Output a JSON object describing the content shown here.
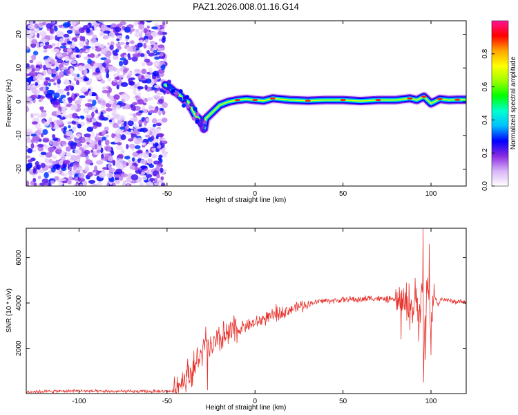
{
  "chart_data": [
    {
      "type": "heatmap",
      "title": "PAZ1.2026.008.01.16.G14",
      "xlabel": "Height of straight line (km)",
      "ylabel": "Frequency (Hz)",
      "xlim": [
        -130,
        120
      ],
      "ylim": [
        -25,
        24
      ],
      "xticks": [
        -100,
        -50,
        0,
        50,
        100
      ],
      "yticks": [
        -20,
        -10,
        0,
        10,
        20
      ],
      "noise_region": {
        "x_from": -130,
        "x_to": -51,
        "freq_from": -25,
        "freq_to": 24
      },
      "signal_track": {
        "heights": [
          -51,
          -48,
          -46,
          -44,
          -42,
          -40,
          -38,
          -36,
          -34,
          -32,
          -30,
          -29,
          -28,
          -26,
          -24,
          -22,
          -20,
          -15,
          -10,
          -5,
          0,
          5,
          10,
          20,
          30,
          40,
          50,
          60,
          70,
          80,
          88,
          92,
          96,
          100,
          105,
          110,
          115,
          120
        ],
        "frequencies": [
          5,
          4,
          3,
          2.5,
          1.5,
          0.5,
          0,
          -2,
          -4,
          -5,
          -6,
          -8,
          -5,
          -4,
          -3,
          -2,
          -1,
          0,
          0.5,
          0.8,
          0.5,
          0.3,
          1.0,
          0.5,
          0.3,
          0.5,
          0.5,
          0.2,
          0.5,
          0.5,
          1.0,
          0.5,
          1.5,
          -0.5,
          0.8,
          0.5,
          0.6,
          0.6
        ]
      },
      "colorbar": {
        "label": "Normalized spectral amplitude",
        "range": [
          0,
          1
        ],
        "ticks": [
          "0.0",
          "0.2",
          "0.4",
          "0.6",
          "0.8"
        ],
        "tick_values": [
          0,
          0.2,
          0.4,
          0.6,
          0.8
        ],
        "colors": [
          "#ffffff",
          "#d8b4f8",
          "#8a2be2",
          "#0000ff",
          "#00bfff",
          "#00ffd0",
          "#00ff00",
          "#a0ff00",
          "#ffff00",
          "#ffa500",
          "#ff0000",
          "#ff1493"
        ]
      }
    },
    {
      "type": "line",
      "xlabel": "Height of straight line (km)",
      "ylabel": "SNR (10 * v/v)",
      "xlim": [
        -130,
        120
      ],
      "ylim": [
        0,
        7300
      ],
      "xticks": [
        -100,
        -50,
        0,
        50,
        100
      ],
      "yticks": [
        2000,
        4000,
        6000
      ],
      "line_color": "#e8302a",
      "series": [
        {
          "name": "SNR",
          "x": [
            -130,
            -100,
            -90,
            -60,
            -46,
            -44,
            -42,
            -40,
            -38,
            -36,
            -34,
            -32,
            -30,
            -28,
            -26,
            -24,
            -22,
            -20,
            -15,
            -10,
            -5,
            0,
            5,
            10,
            15,
            20,
            25,
            30,
            35,
            40,
            45,
            50,
            55,
            60,
            65,
            70,
            75,
            80,
            82,
            84,
            86,
            88,
            90,
            92,
            94,
            95,
            96,
            97,
            98,
            100,
            102,
            104,
            106,
            110,
            115,
            120
          ],
          "y": [
            80,
            120,
            100,
            90,
            110,
            300,
            500,
            700,
            900,
            1000,
            1200,
            1500,
            1800,
            1900,
            2000,
            2100,
            2200,
            2300,
            2600,
            2800,
            3000,
            3100,
            3300,
            3400,
            3600,
            3700,
            3850,
            3950,
            4050,
            4100,
            4100,
            4150,
            4150,
            4150,
            4200,
            4200,
            4150,
            4150,
            3900,
            4100,
            3800,
            4200,
            3600,
            4300,
            3500,
            5200,
            1500,
            3800,
            4600,
            3400,
            4300,
            3900,
            4200,
            4100,
            4050,
            4050
          ]
        }
      ],
      "spikes": [
        {
          "x": -28,
          "y": 2950
        },
        {
          "x": -27,
          "y": 150
        },
        {
          "x": -18,
          "y": 3200
        },
        {
          "x": -12,
          "y": 3450
        },
        {
          "x": 12,
          "y": 3950
        },
        {
          "x": 82,
          "y": 4700
        },
        {
          "x": 83,
          "y": 2400
        },
        {
          "x": 86,
          "y": 4900
        },
        {
          "x": 88,
          "y": 2800
        },
        {
          "x": 91,
          "y": 5100
        },
        {
          "x": 93,
          "y": 2300
        },
        {
          "x": 95.5,
          "y": 7300
        },
        {
          "x": 95.8,
          "y": 500
        },
        {
          "x": 97,
          "y": 1500
        },
        {
          "x": 99,
          "y": 6600
        },
        {
          "x": 100,
          "y": 1700
        }
      ]
    }
  ]
}
